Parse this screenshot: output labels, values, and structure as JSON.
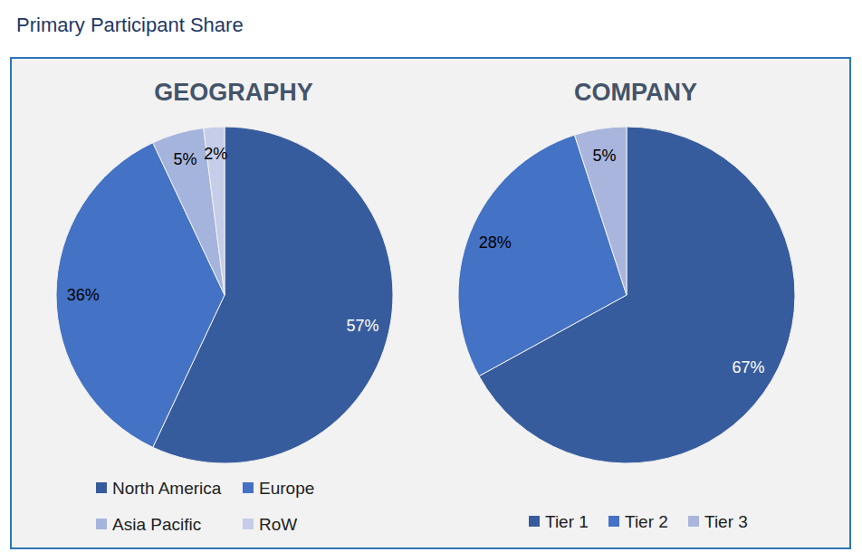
{
  "title": "Primary Participant Share",
  "chart_data": [
    {
      "type": "pie",
      "title": "GEOGRAPHY",
      "categories": [
        "North America",
        "Europe",
        "Asia Pacific",
        "RoW"
      ],
      "values": [
        57,
        36,
        5,
        2
      ],
      "value_labels": [
        "57%",
        "36%",
        "5%",
        "2%"
      ],
      "colors": [
        "#375c9e",
        "#4472c4",
        "#a5b4dc",
        "#c5cde8"
      ],
      "data_labels": true
    },
    {
      "type": "pie",
      "title": "COMPANY",
      "categories": [
        "Tier 1",
        "Tier 2",
        "Tier 3"
      ],
      "values": [
        67,
        28,
        5
      ],
      "value_labels": [
        "67%",
        "28%",
        "5%"
      ],
      "colors": [
        "#375c9e",
        "#4472c4",
        "#a9b5dc"
      ],
      "data_labels": true
    }
  ]
}
